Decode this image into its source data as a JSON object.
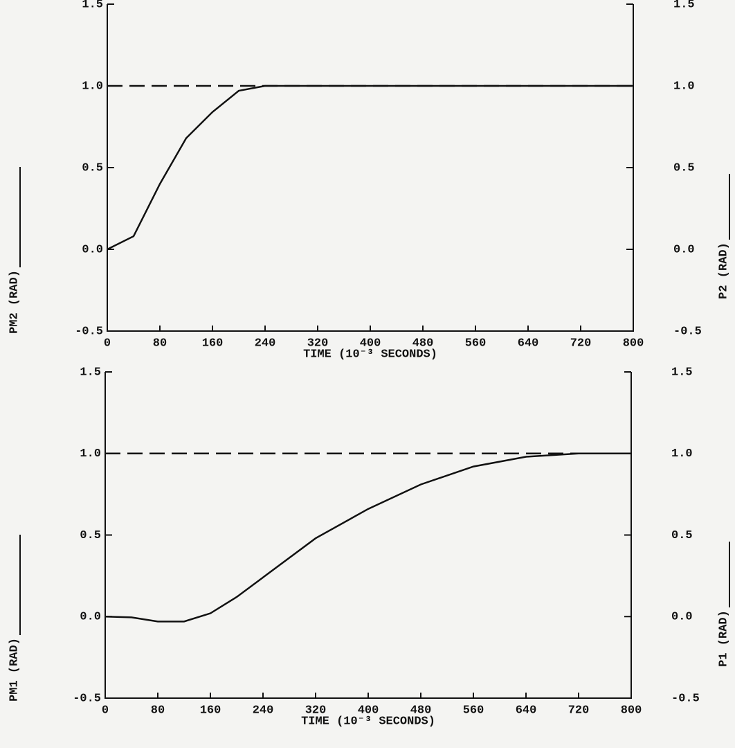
{
  "chart_data": [
    {
      "type": "line",
      "xlabel": "TIME (10⁻³ SECONDS)",
      "ylabel": "PM2 (RAD)",
      "y2label": "P2 (RAD)",
      "x": [
        0,
        40,
        80,
        120,
        160,
        200,
        240,
        320,
        400,
        480,
        560,
        640,
        720,
        800
      ],
      "series": [
        {
          "name": "PM2 (RAD)",
          "color": "#111111",
          "style": "solid",
          "values": [
            0,
            0.08,
            0.4,
            0.68,
            0.84,
            0.97,
            1.0,
            1.0,
            1.0,
            1.0,
            1.0,
            1.0,
            1.0,
            1.0
          ]
        },
        {
          "name": "P2 (RAD)",
          "color": "#111111",
          "style": "dashed",
          "axis": "y2",
          "values": [
            1.0,
            1.0,
            1.0,
            1.0,
            1.0,
            1.0,
            1.0,
            1.0,
            1.0,
            1.0,
            1.0,
            1.0,
            1.0,
            1.0
          ]
        }
      ],
      "xlim": [
        0,
        800
      ],
      "xticks": [
        0,
        80,
        160,
        240,
        320,
        400,
        480,
        560,
        640,
        720,
        800
      ],
      "ylim": [
        -0.5,
        1.5
      ],
      "yticks": [
        -0.5,
        {
          "value": 0,
          "label": "0.0"
        },
        0.5,
        {
          "value": 1,
          "label": "1.0"
        },
        1.5
      ],
      "y2lim": [
        -0.5,
        1.5
      ],
      "y2ticks": [
        -0.5,
        {
          "value": 0,
          "label": "0.0"
        },
        0.5,
        {
          "value": 1,
          "label": "1.0"
        },
        1.5
      ]
    },
    {
      "type": "line",
      "xlabel": "TIME (10⁻³ SECONDS)",
      "ylabel": "PM1 (RAD)",
      "y2label": "P1 (RAD)",
      "x": [
        0,
        40,
        80,
        120,
        160,
        200,
        240,
        320,
        400,
        480,
        560,
        640,
        720,
        800
      ],
      "series": [
        {
          "name": "PM1 (RAD)",
          "color": "#111111",
          "style": "solid",
          "values": [
            0,
            -0.005,
            -0.03,
            -0.03,
            0.02,
            0.12,
            0.24,
            0.48,
            0.66,
            0.81,
            0.92,
            0.98,
            1.0,
            1.0
          ]
        },
        {
          "name": "P1 (RAD)",
          "color": "#111111",
          "style": "dashed",
          "axis": "y2",
          "values": [
            1.0,
            1.0,
            1.0,
            1.0,
            1.0,
            1.0,
            1.0,
            1.0,
            1.0,
            1.0,
            1.0,
            1.0,
            1.0,
            1.0
          ]
        }
      ],
      "xlim": [
        0,
        800
      ],
      "xticks": [
        0,
        80,
        160,
        240,
        320,
        400,
        480,
        560,
        640,
        720,
        800
      ],
      "ylim": [
        -0.5,
        1.5
      ],
      "yticks": [
        -0.5,
        {
          "value": 0,
          "label": "0.0"
        },
        0.5,
        {
          "value": 1,
          "label": "1.0"
        },
        1.5
      ],
      "y2lim": [
        -0.5,
        1.5
      ],
      "y2ticks": [
        -0.5,
        {
          "value": 0,
          "label": "0.0"
        },
        0.5,
        {
          "value": 1,
          "label": "1.0"
        },
        1.5
      ]
    }
  ]
}
